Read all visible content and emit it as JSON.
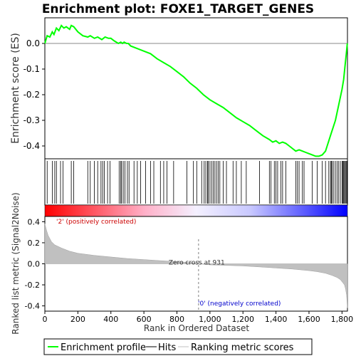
{
  "chart_data": {
    "type": "line",
    "title": "Enrichment plot: FOXE1_TARGET_GENES",
    "es_panel": {
      "ylabel": "Enrichment score (ES)",
      "ylim": [
        -0.45,
        0.1
      ],
      "yticks": [
        0.0,
        -0.1,
        -0.2,
        -0.3,
        -0.4
      ],
      "ytick_labels": [
        "0.0",
        "-0.1",
        "-0.2",
        "-0.3",
        "-0.4"
      ],
      "series": [
        {
          "name": "Enrichment profile",
          "color": "#00ff00",
          "x": [
            0,
            14,
            30,
            45,
            55,
            70,
            85,
            100,
            115,
            130,
            150,
            160,
            175,
            200,
            230,
            260,
            275,
            300,
            320,
            345,
            365,
            385,
            400,
            420,
            445,
            460,
            470,
            480,
            495,
            505,
            520,
            560,
            600,
            640,
            680,
            720,
            760,
            800,
            840,
            880,
            920,
            960,
            1000,
            1040,
            1080,
            1120,
            1160,
            1200,
            1240,
            1280,
            1320,
            1360,
            1380,
            1400,
            1420,
            1440,
            1460,
            1480,
            1500,
            1520,
            1540,
            1560,
            1580,
            1600,
            1620,
            1640,
            1660,
            1680,
            1700,
            1710,
            1720,
            1730,
            1745,
            1760,
            1770,
            1780,
            1790,
            1800,
            1810,
            1818,
            1826,
            1832
          ],
          "y": [
            0.0,
            0.03,
            0.025,
            0.045,
            0.035,
            0.06,
            0.05,
            0.07,
            0.06,
            0.065,
            0.055,
            0.07,
            0.065,
            0.045,
            0.03,
            0.025,
            0.03,
            0.02,
            0.025,
            0.015,
            0.025,
            0.02,
            0.02,
            0.01,
            0.0,
            0.005,
            0.0,
            0.005,
            0.0,
            0.0,
            -0.01,
            -0.02,
            -0.03,
            -0.04,
            -0.06,
            -0.075,
            -0.09,
            -0.11,
            -0.13,
            -0.155,
            -0.175,
            -0.2,
            -0.22,
            -0.235,
            -0.25,
            -0.27,
            -0.29,
            -0.305,
            -0.32,
            -0.34,
            -0.36,
            -0.375,
            -0.385,
            -0.38,
            -0.39,
            -0.385,
            -0.39,
            -0.4,
            -0.41,
            -0.42,
            -0.415,
            -0.42,
            -0.425,
            -0.43,
            -0.435,
            -0.44,
            -0.44,
            -0.435,
            -0.42,
            -0.4,
            -0.38,
            -0.36,
            -0.33,
            -0.3,
            -0.27,
            -0.24,
            -0.21,
            -0.18,
            -0.14,
            -0.09,
            -0.04,
            0.0
          ]
        }
      ]
    },
    "hits_panel": {
      "name": "Hits",
      "hit_ranks": [
        14,
        45,
        60,
        70,
        95,
        110,
        160,
        175,
        260,
        275,
        300,
        320,
        340,
        350,
        360,
        380,
        395,
        450,
        460,
        465,
        475,
        485,
        500,
        510,
        540,
        560,
        580,
        610,
        640,
        660,
        700,
        720,
        740,
        780,
        860,
        900,
        920,
        950,
        965,
        975,
        985,
        990,
        1000,
        1010,
        1020,
        1030,
        1040,
        1050,
        1060,
        1080,
        1100,
        1140,
        1160,
        1190,
        1220,
        1300,
        1360,
        1370,
        1390,
        1400,
        1410,
        1430,
        1440,
        1460,
        1520,
        1530,
        1540,
        1560,
        1570,
        1620,
        1650,
        1680,
        1700,
        1720,
        1730,
        1735,
        1740,
        1750,
        1760,
        1770,
        1780,
        1790,
        1800,
        1805,
        1810,
        1815,
        1820,
        1825,
        1830
      ]
    },
    "metric_panel": {
      "ylabel": "Ranked list metric (Signal2Noise)",
      "xlabel": "Rank in Ordered Dataset",
      "ylim": [
        -0.45,
        0.45
      ],
      "yticks": [
        0.4,
        0.2,
        0.0,
        -0.2,
        -0.4
      ],
      "ytick_labels": [
        "0.4",
        "0.2",
        "0.0",
        "-0.2",
        "-0.4"
      ],
      "series": [
        {
          "name": "Ranking metric scores",
          "color": "#c0c0c0",
          "x": [
            0,
            10,
            20,
            40,
            60,
            100,
            150,
            200,
            300,
            400,
            500,
            600,
            700,
            800,
            900,
            931,
            1000,
            1100,
            1200,
            1300,
            1400,
            1500,
            1600,
            1650,
            1700,
            1740,
            1770,
            1790,
            1805,
            1815,
            1822,
            1828,
            1833
          ],
          "y": [
            0.38,
            0.32,
            0.27,
            0.21,
            0.18,
            0.15,
            0.12,
            0.1,
            0.08,
            0.065,
            0.05,
            0.04,
            0.03,
            0.02,
            0.01,
            0.0,
            -0.01,
            -0.015,
            -0.02,
            -0.03,
            -0.04,
            -0.05,
            -0.065,
            -0.075,
            -0.09,
            -0.11,
            -0.13,
            -0.15,
            -0.18,
            -0.2,
            -0.24,
            -0.3,
            -0.42
          ]
        }
      ],
      "zero_cross_label": "Zero cross at 931",
      "zero_cross": 931,
      "positive_label": "'2' (positively correlated)",
      "negative_label": "'0' (negatively correlated)"
    },
    "xlim": [
      0,
      1833
    ],
    "xticks": [
      0,
      200,
      400,
      600,
      800,
      1000,
      1200,
      1400,
      1600,
      1800
    ],
    "xtick_labels": [
      "0",
      "200",
      "400",
      "600",
      "800",
      "1,000",
      "1,200",
      "1,400",
      "1,600",
      "1,800"
    ],
    "legend": {
      "placement": "bottom",
      "items": [
        {
          "label": "Enrichment profile",
          "color": "#00ff00"
        },
        {
          "label": "Hits",
          "color": "#000000"
        },
        {
          "label": "Ranking metric scores",
          "color": "#c0c0c0"
        }
      ]
    },
    "colors": {
      "es_line": "#00ff00",
      "positive_label": "#cc0000",
      "negative_label": "#0000cc",
      "metric_fill": "#c0c0c0"
    }
  }
}
